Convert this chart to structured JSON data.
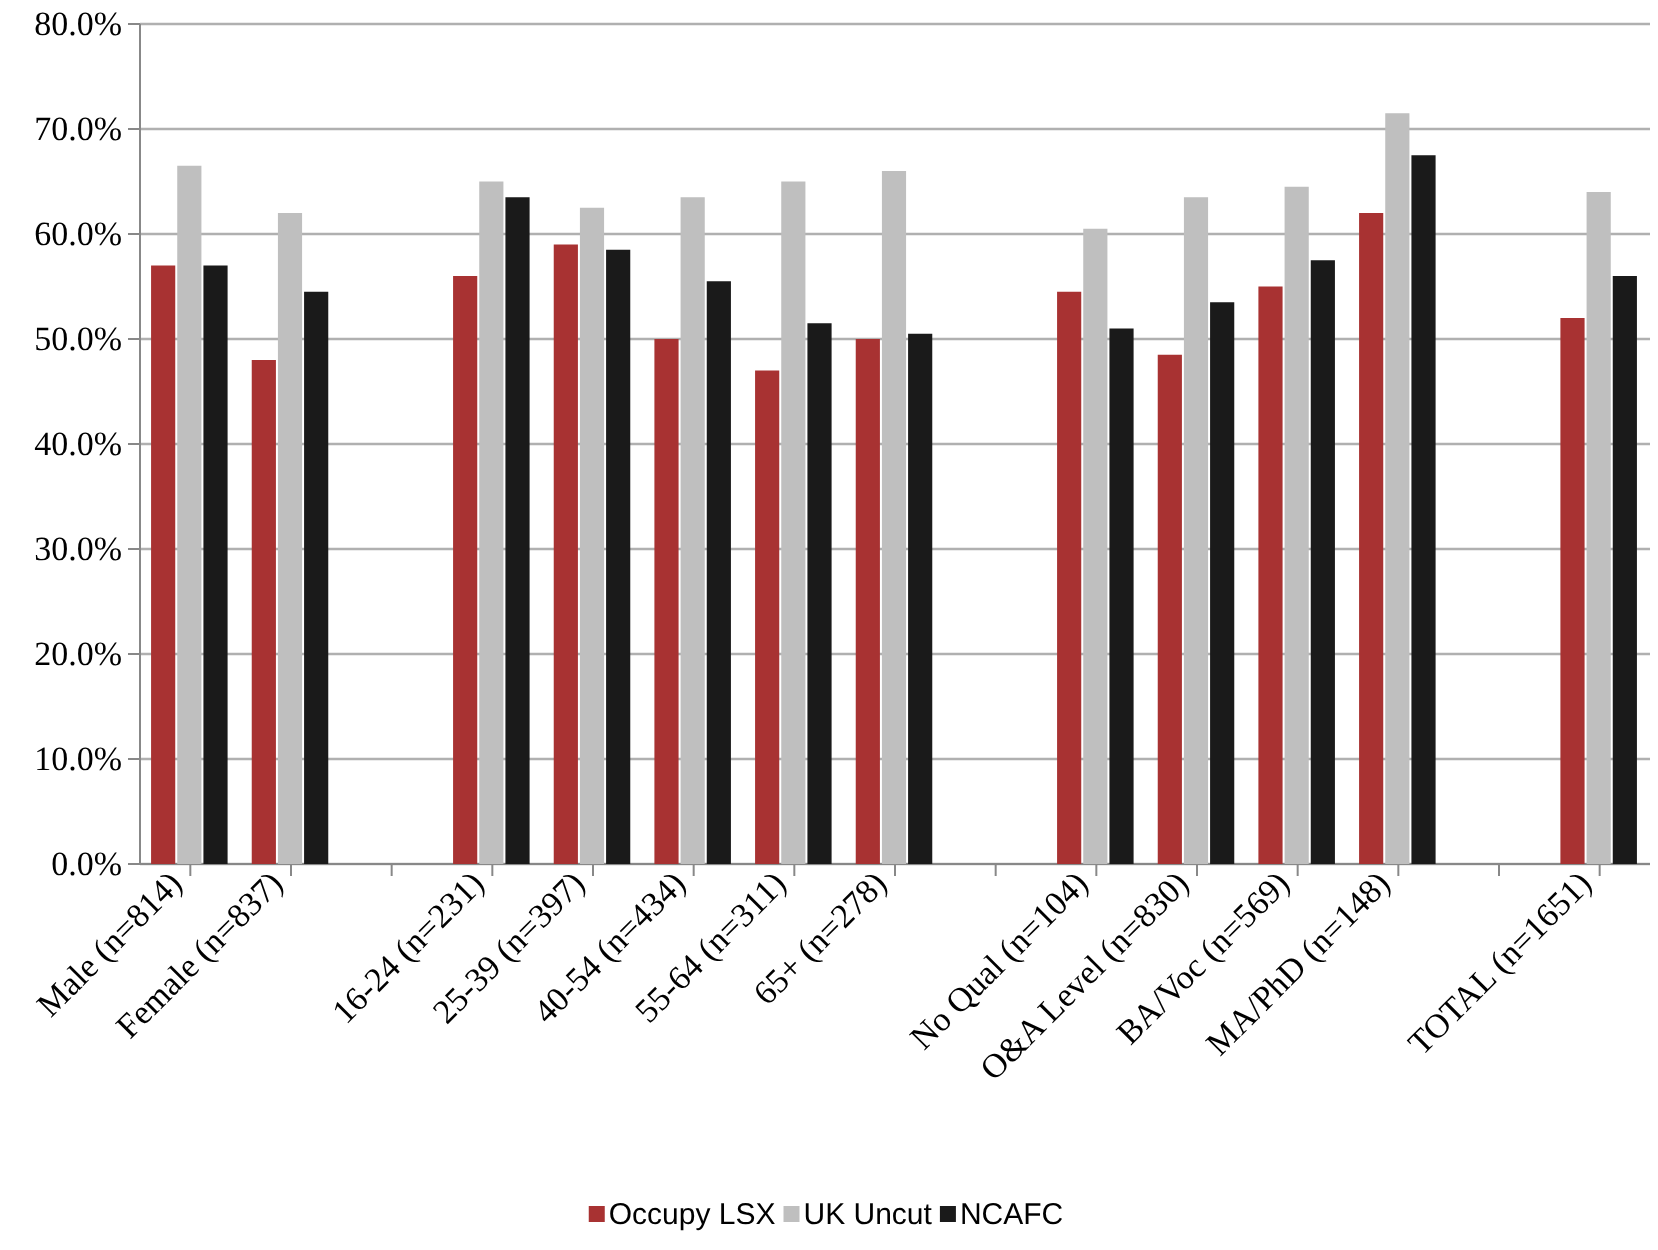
{
  "chart_data": {
    "type": "bar",
    "categories": [
      "Male (n=814)",
      "Female (n=837)",
      null,
      "16-24 (n=231)",
      "25-39 (n=397)",
      "40-54 (n=434)",
      "55-64 (n=311)",
      "65+ (n=278)",
      null,
      "No Qual (n=104)",
      "O&A Level (n=830)",
      "BA/Voc (n=569)",
      "MA/PhD (n=148)",
      null,
      "TOTAL (n=1651)"
    ],
    "series": [
      {
        "name": "Occupy LSX",
        "color": "#a83232",
        "values": [
          57,
          48,
          null,
          56,
          59,
          50,
          47,
          50,
          null,
          54.5,
          48.5,
          55,
          62,
          null,
          52
        ]
      },
      {
        "name": "UK Uncut",
        "color": "#bfbfbf",
        "values": [
          66.5,
          62,
          null,
          65,
          62.5,
          63.5,
          65,
          66,
          null,
          60.5,
          63.5,
          64.5,
          71.5,
          null,
          64
        ]
      },
      {
        "name": "NCAFC",
        "color": "#1a1a1a",
        "values": [
          57,
          54.5,
          null,
          63.5,
          58.5,
          55.5,
          51.5,
          50.5,
          null,
          51,
          53.5,
          57.5,
          67.5,
          null,
          56
        ]
      }
    ],
    "ylim": [
      0,
      80
    ],
    "yticks": [
      {
        "value": 0,
        "label": "0.0%"
      },
      {
        "value": 10,
        "label": "10.0%"
      },
      {
        "value": 20,
        "label": "20.0%"
      },
      {
        "value": 30,
        "label": "30.0%"
      },
      {
        "value": 40,
        "label": "40.0%"
      },
      {
        "value": 50,
        "label": "50.0%"
      },
      {
        "value": 60,
        "label": "60.0%"
      },
      {
        "value": 70,
        "label": "70.0%"
      },
      {
        "value": 80,
        "label": "80.0%"
      }
    ],
    "grid": "y",
    "legend": "bottom"
  }
}
